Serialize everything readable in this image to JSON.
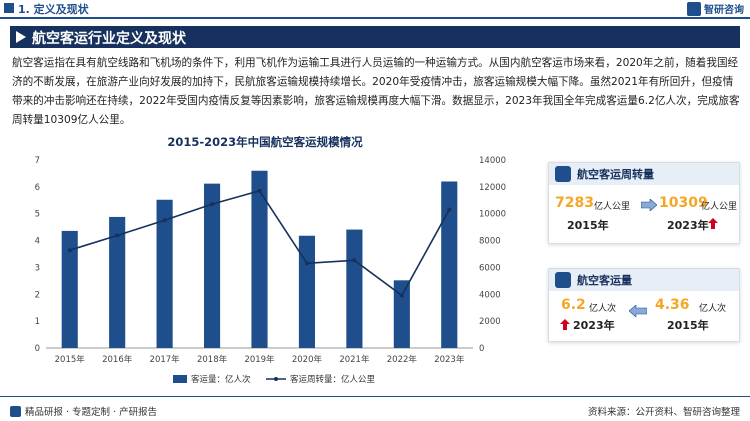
{
  "header": {
    "section": "1. 定义及现状",
    "brand": "智研咨询"
  },
  "title": "航空客运行业定义及现状",
  "body_text": "航空客运指在具有航空线路和飞机场的条件下，利用飞机作为运输工具进行人员运输的一种运输方式。从国内航空客运市场来看，2020年之前，随着我国经济的不断发展，在旅游产业向好发展的加持下，民航旅客运输规模持续增长。2020年受疫情冲击，旅客运输规模大幅下降。虽然2021年有所回升，但疫情带来的冲击影响还在持续，2022年受国内疫情反复等因素影响，旅客运输规模再度大幅下滑。数据显示，2023年我国全年完成客运量6.2亿人次，完成旅客周转量10309亿人公里。",
  "colors": {
    "primary": "#1f4e8c",
    "dark": "#16315e",
    "bar": "#1f4e8c",
    "line": "#16315e",
    "accent": "#f5a623",
    "up": "#d0021b"
  },
  "chart_data": {
    "type": "bar",
    "title": "2015-2023年中国航空客运规模情况",
    "categories": [
      "2015年",
      "2016年",
      "2017年",
      "2018年",
      "2019年",
      "2020年",
      "2021年",
      "2022年",
      "2023年"
    ],
    "series": [
      {
        "name": "客运量：亿人次",
        "type": "bar",
        "axis": "left",
        "values": [
          4.36,
          4.88,
          5.52,
          6.12,
          6.6,
          4.18,
          4.41,
          2.52,
          6.2
        ]
      },
      {
        "name": "客运周转量：亿人公里",
        "type": "line",
        "axis": "right",
        "values": [
          7283,
          8378,
          9514,
          10712,
          11705,
          6311,
          6530,
          3914,
          10309
        ]
      }
    ],
    "ylim_left": [
      0,
      7
    ],
    "ylim_right": [
      0,
      14000
    ],
    "left_ticks": [
      0,
      1,
      2,
      3,
      4,
      5,
      6,
      7
    ],
    "right_ticks": [
      0,
      2000,
      4000,
      6000,
      8000,
      10000,
      12000,
      14000
    ],
    "legend_position": "bottom"
  },
  "card_turnover": {
    "label": "航空客运周转量",
    "from_value": "7283",
    "from_unit": "亿人公里",
    "from_year": "2015年",
    "to_value": "10309",
    "to_unit": "亿人公里",
    "to_year": "2023年"
  },
  "card_volume": {
    "label": "航空客运量",
    "left_value": "6.2",
    "left_unit": "亿人次",
    "left_year": "2023年",
    "right_value": "4.36",
    "right_unit": "亿人次",
    "right_year": "2015年"
  },
  "footer": {
    "left": "精品研报 · 专题定制 · 产研报告",
    "right": "资料来源：公开资料、智研咨询整理"
  }
}
